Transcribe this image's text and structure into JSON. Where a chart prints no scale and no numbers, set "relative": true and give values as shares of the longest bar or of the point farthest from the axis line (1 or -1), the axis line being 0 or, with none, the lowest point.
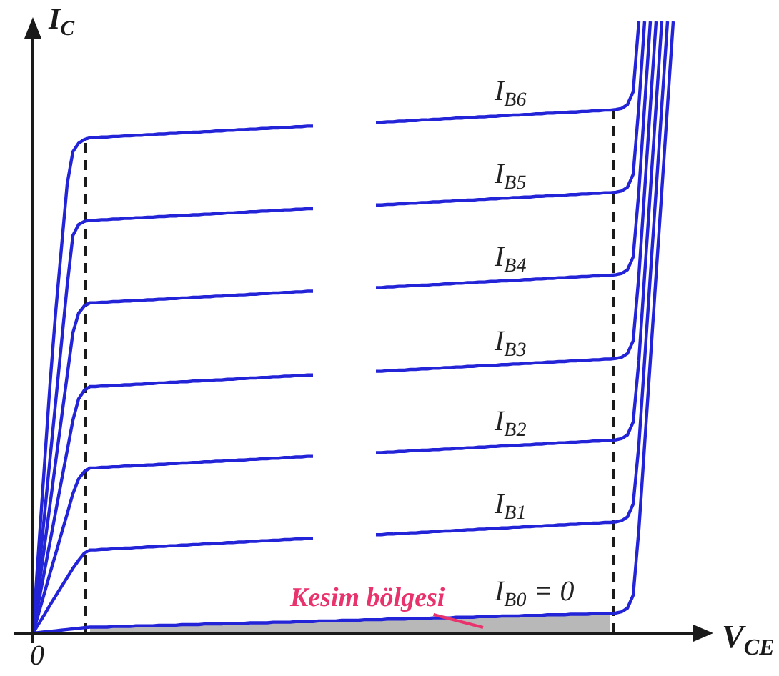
{
  "chart_data": {
    "type": "line",
    "relative": true,
    "xlabel": "V$_{CE}$",
    "ylabel": "I$_{C}$",
    "marker": "none",
    "line_style": "solid",
    "annotations": [
      "0",
      "Kesim bölgesi"
    ],
    "categories": [
      null,
      null,
      null,
      null,
      null,
      null,
      null,
      null,
      null,
      null,
      null,
      null,
      null,
      null,
      null,
      null,
      null,
      null,
      null,
      null,
      null,
      null,
      null,
      null,
      null,
      null,
      null,
      null,
      null,
      null,
      null,
      null,
      null,
      null,
      null,
      null,
      null,
      null,
      null,
      null,
      null,
      null,
      null,
      null,
      null,
      null,
      null,
      null,
      null,
      null,
      null,
      null,
      null,
      null,
      null,
      null,
      null,
      null,
      null,
      null,
      null,
      null,
      null,
      null,
      null,
      null,
      null,
      null,
      null,
      null,
      null,
      null,
      null,
      null,
      null,
      null,
      null,
      null,
      null,
      null,
      null,
      null,
      null,
      null,
      null,
      null,
      null,
      null,
      null,
      null,
      null,
      null,
      null,
      null,
      null,
      null,
      null,
      null,
      null,
      null,
      null,
      null,
      null,
      null,
      null,
      null,
      null,
      null,
      null,
      null,
      null,
      null,
      null
    ],
    "series": [
      {
        "type": "area",
        "color": "#b8b8b8",
        "values": [
          null,
          null,
          null,
          null,
          null,
          null,
          null,
          null,
          null,
          null,
          0.01,
          0.01,
          0.01,
          0.01,
          0.011,
          0.011,
          0.011,
          0.011,
          0.012,
          0.012,
          0.012,
          0.012,
          0.013,
          0.013,
          0.013,
          0.013,
          0.014,
          0.014,
          0.014,
          0.014,
          0.015,
          0.015,
          0.015,
          0.015,
          0.016,
          0.016,
          0.016,
          0.016,
          0.017,
          0.017,
          0.017,
          0.017,
          0.018,
          0.018,
          0.018,
          0.018,
          0.019,
          0.019,
          0.019,
          0.019,
          0.02,
          0.02,
          0.02,
          0.02,
          0.021,
          0.021,
          0.021,
          0.021,
          0.022,
          0.022,
          0.022,
          0.022,
          0.023,
          0.023,
          0.023,
          0.023,
          0.024,
          0.024,
          0.024,
          0.024,
          0.025,
          0.025,
          0.025,
          0.025,
          0.026,
          0.026,
          0.026,
          0.026,
          0.027,
          0.027,
          0.027,
          0.027,
          0.028,
          0.028,
          0.028,
          0.028,
          0.029,
          0.029,
          0.029,
          0.029,
          0.03,
          0.03,
          0.03,
          0.03,
          0.031,
          0.031,
          0.031,
          0.031,
          0.032,
          0.032,
          0.032,
          0.032,
          null,
          null,
          null,
          null,
          null,
          null,
          null,
          null,
          null,
          null,
          null
        ]
      },
      {
        "name": "I$_{B0}$ = 0",
        "color": "#2323d8",
        "values": [
          0,
          0.001,
          0.002,
          0.003,
          0.004,
          0.005,
          0.006,
          0.007,
          0.008,
          0.009,
          0.01,
          0.01,
          0.01,
          0.01,
          0.011,
          0.011,
          0.011,
          0.011,
          0.012,
          0.012,
          0.012,
          0.012,
          0.013,
          0.013,
          0.013,
          0.013,
          0.014,
          0.014,
          0.014,
          0.014,
          0.015,
          0.015,
          0.015,
          0.015,
          0.016,
          0.016,
          0.016,
          0.016,
          0.017,
          0.017,
          0.017,
          0.017,
          0.018,
          0.018,
          0.018,
          0.018,
          0.019,
          0.019,
          0.019,
          0.019,
          0.02,
          0.02,
          0.02,
          0.02,
          0.021,
          0.021,
          0.021,
          0.021,
          0.022,
          0.022,
          0.022,
          0.022,
          0.023,
          0.023,
          0.023,
          0.023,
          0.024,
          0.024,
          0.024,
          0.024,
          0.025,
          0.025,
          0.025,
          0.025,
          0.026,
          0.026,
          0.026,
          0.026,
          0.027,
          0.027,
          0.027,
          0.027,
          0.028,
          0.028,
          0.028,
          0.028,
          0.029,
          0.029,
          0.029,
          0.029,
          0.03,
          0.03,
          0.03,
          0.03,
          0.031,
          0.031,
          0.031,
          0.031,
          0.032,
          0.032,
          0.032,
          0.032,
          0.033,
          0.035,
          0.041,
          0.062,
          0.17,
          0.308,
          0.446,
          0.585,
          0.723,
          0.862,
          1.0
        ]
      },
      {
        "name": "I$_{B1}$",
        "color": "#2323d8",
        "values": [
          0,
          0.015,
          0.03,
          0.046,
          0.061,
          0.076,
          0.091,
          0.106,
          0.119,
          0.131,
          0.136,
          0.136,
          0.137,
          0.137,
          0.138,
          0.138,
          0.139,
          0.139,
          0.14,
          0.14,
          0.141,
          0.141,
          0.142,
          0.142,
          0.143,
          0.143,
          0.144,
          0.144,
          0.145,
          0.145,
          0.146,
          0.146,
          0.147,
          0.147,
          0.148,
          0.148,
          0.149,
          0.149,
          0.15,
          0.15,
          0.151,
          0.151,
          0.152,
          0.152,
          0.153,
          0.153,
          0.154,
          0.154,
          0.155,
          0.155,
          null,
          null,
          null,
          null,
          null,
          null,
          null,
          null,
          null,
          null,
          0.161,
          0.161,
          0.162,
          0.162,
          0.163,
          0.163,
          0.164,
          0.164,
          0.165,
          0.165,
          0.166,
          0.166,
          0.167,
          0.167,
          0.168,
          0.168,
          0.169,
          0.169,
          0.17,
          0.17,
          0.171,
          0.171,
          0.172,
          0.172,
          0.173,
          0.173,
          0.174,
          0.174,
          0.175,
          0.175,
          0.176,
          0.176,
          0.177,
          0.177,
          0.178,
          0.178,
          0.179,
          0.179,
          0.18,
          0.18,
          0.181,
          0.181,
          0.182,
          0.184,
          0.19,
          0.211,
          0.308,
          0.446,
          0.585,
          0.723,
          0.862,
          1.0,
          null
        ]
      },
      {
        "name": "I$_{B2}$",
        "color": "#2323d8",
        "values": [
          0,
          0.032,
          0.065,
          0.098,
          0.13,
          0.163,
          0.195,
          0.228,
          0.252,
          0.264,
          0.27,
          0.27,
          0.271,
          0.271,
          0.272,
          0.272,
          0.273,
          0.273,
          0.274,
          0.274,
          0.275,
          0.275,
          0.276,
          0.276,
          0.277,
          0.277,
          0.278,
          0.278,
          0.279,
          0.279,
          0.28,
          0.28,
          0.281,
          0.281,
          0.282,
          0.282,
          0.283,
          0.283,
          0.284,
          0.284,
          0.285,
          0.285,
          0.286,
          0.286,
          0.287,
          0.287,
          0.288,
          0.288,
          0.289,
          0.289,
          null,
          null,
          null,
          null,
          null,
          null,
          null,
          null,
          null,
          null,
          0.295,
          0.295,
          0.296,
          0.296,
          0.297,
          0.297,
          0.298,
          0.298,
          0.299,
          0.299,
          0.3,
          0.3,
          0.301,
          0.301,
          0.302,
          0.302,
          0.303,
          0.303,
          0.304,
          0.304,
          0.305,
          0.305,
          0.306,
          0.306,
          0.307,
          0.307,
          0.308,
          0.308,
          0.309,
          0.309,
          0.31,
          0.31,
          0.311,
          0.311,
          0.312,
          0.312,
          0.313,
          0.313,
          0.314,
          0.314,
          0.315,
          0.315,
          0.316,
          0.318,
          0.324,
          0.345,
          0.446,
          0.585,
          0.723,
          0.862,
          1.0,
          null,
          null
        ]
      },
      {
        "name": "I$_{B3}$",
        "color": "#2323d8",
        "values": [
          0,
          0.05,
          0.1,
          0.149,
          0.199,
          0.249,
          0.298,
          0.348,
          0.383,
          0.397,
          0.403,
          0.403,
          0.404,
          0.404,
          0.405,
          0.405,
          0.406,
          0.406,
          0.407,
          0.407,
          0.408,
          0.408,
          0.409,
          0.409,
          0.41,
          0.41,
          0.411,
          0.411,
          0.412,
          0.412,
          0.413,
          0.413,
          0.414,
          0.414,
          0.415,
          0.415,
          0.416,
          0.416,
          0.417,
          0.417,
          0.418,
          0.418,
          0.419,
          0.419,
          0.42,
          0.42,
          0.421,
          0.421,
          0.422,
          0.422,
          null,
          null,
          null,
          null,
          null,
          null,
          null,
          null,
          null,
          null,
          0.428,
          0.428,
          0.429,
          0.429,
          0.43,
          0.43,
          0.431,
          0.431,
          0.432,
          0.432,
          0.433,
          0.433,
          0.434,
          0.434,
          0.435,
          0.435,
          0.436,
          0.436,
          0.437,
          0.437,
          0.438,
          0.438,
          0.439,
          0.439,
          0.44,
          0.44,
          0.441,
          0.441,
          0.442,
          0.442,
          0.443,
          0.443,
          0.444,
          0.444,
          0.445,
          0.445,
          0.446,
          0.446,
          0.447,
          0.447,
          0.448,
          0.448,
          0.449,
          0.451,
          0.457,
          0.478,
          0.585,
          0.723,
          0.862,
          1.0,
          null,
          null,
          null
        ]
      },
      {
        "name": "I$_{B4}$",
        "color": "#2323d8",
        "values": [
          0,
          0.07,
          0.14,
          0.21,
          0.281,
          0.351,
          0.421,
          0.491,
          0.523,
          0.535,
          0.54,
          0.54,
          0.541,
          0.541,
          0.542,
          0.542,
          0.543,
          0.543,
          0.544,
          0.544,
          0.545,
          0.545,
          0.546,
          0.546,
          0.547,
          0.547,
          0.548,
          0.548,
          0.549,
          0.549,
          0.55,
          0.55,
          0.551,
          0.551,
          0.552,
          0.552,
          0.553,
          0.553,
          0.554,
          0.554,
          0.555,
          0.555,
          0.556,
          0.556,
          0.557,
          0.557,
          0.558,
          0.558,
          0.559,
          0.559,
          null,
          null,
          null,
          null,
          null,
          null,
          null,
          null,
          null,
          null,
          0.565,
          0.565,
          0.566,
          0.566,
          0.567,
          0.567,
          0.568,
          0.568,
          0.569,
          0.569,
          0.57,
          0.57,
          0.571,
          0.571,
          0.572,
          0.572,
          0.573,
          0.573,
          0.574,
          0.574,
          0.575,
          0.575,
          0.576,
          0.576,
          0.577,
          0.577,
          0.578,
          0.578,
          0.579,
          0.579,
          0.58,
          0.58,
          0.581,
          0.581,
          0.582,
          0.582,
          0.583,
          0.583,
          0.584,
          0.584,
          0.585,
          0.585,
          0.586,
          0.588,
          0.594,
          0.615,
          0.723,
          0.862,
          1.0,
          null,
          null,
          null,
          null
        ]
      },
      {
        "name": "I$_{B5}$",
        "color": "#2323d8",
        "values": [
          0,
          0.095,
          0.19,
          0.285,
          0.379,
          0.474,
          0.568,
          0.65,
          0.668,
          0.673,
          0.675,
          0.675,
          0.676,
          0.676,
          0.677,
          0.677,
          0.678,
          0.678,
          0.679,
          0.679,
          0.68,
          0.68,
          0.681,
          0.681,
          0.682,
          0.682,
          0.683,
          0.683,
          0.684,
          0.684,
          0.685,
          0.685,
          0.686,
          0.686,
          0.687,
          0.687,
          0.688,
          0.688,
          0.689,
          0.689,
          0.69,
          0.69,
          0.691,
          0.691,
          0.692,
          0.692,
          0.693,
          0.693,
          0.694,
          0.694,
          null,
          null,
          null,
          null,
          null,
          null,
          null,
          null,
          null,
          null,
          0.7,
          0.7,
          0.701,
          0.701,
          0.702,
          0.702,
          0.703,
          0.703,
          0.704,
          0.704,
          0.705,
          0.705,
          0.706,
          0.706,
          0.707,
          0.707,
          0.708,
          0.708,
          0.709,
          0.709,
          0.71,
          0.71,
          0.711,
          0.711,
          0.712,
          0.712,
          0.713,
          0.713,
          0.714,
          0.714,
          0.715,
          0.715,
          0.716,
          0.716,
          0.717,
          0.717,
          0.718,
          0.718,
          0.719,
          0.719,
          0.72,
          0.72,
          0.721,
          0.723,
          0.729,
          0.75,
          0.862,
          1.0,
          null,
          null,
          null,
          null,
          null
        ]
      },
      {
        "name": "I$_{B6}$",
        "color": "#2323d8",
        "values": [
          0,
          0.136,
          0.271,
          0.407,
          0.526,
          0.63,
          0.734,
          0.787,
          0.801,
          0.807,
          0.81,
          0.81,
          0.811,
          0.811,
          0.812,
          0.812,
          0.813,
          0.813,
          0.814,
          0.814,
          0.815,
          0.815,
          0.816,
          0.816,
          0.817,
          0.817,
          0.818,
          0.818,
          0.819,
          0.819,
          0.82,
          0.82,
          0.821,
          0.821,
          0.822,
          0.822,
          0.823,
          0.823,
          0.824,
          0.824,
          0.825,
          0.825,
          0.826,
          0.826,
          0.827,
          0.827,
          0.828,
          0.828,
          0.829,
          0.829,
          null,
          null,
          null,
          null,
          null,
          null,
          null,
          null,
          null,
          null,
          0.835,
          0.835,
          0.836,
          0.836,
          0.837,
          0.837,
          0.838,
          0.838,
          0.839,
          0.839,
          0.84,
          0.84,
          0.841,
          0.841,
          0.842,
          0.842,
          0.843,
          0.843,
          0.844,
          0.844,
          0.845,
          0.845,
          0.846,
          0.846,
          0.847,
          0.847,
          0.848,
          0.848,
          0.849,
          0.849,
          0.85,
          0.85,
          0.851,
          0.851,
          0.852,
          0.852,
          0.853,
          0.853,
          0.854,
          0.854,
          0.855,
          0.855,
          0.856,
          0.858,
          0.864,
          0.885,
          1.0,
          null,
          null,
          null,
          null,
          null,
          null
        ]
      }
    ]
  }
}
